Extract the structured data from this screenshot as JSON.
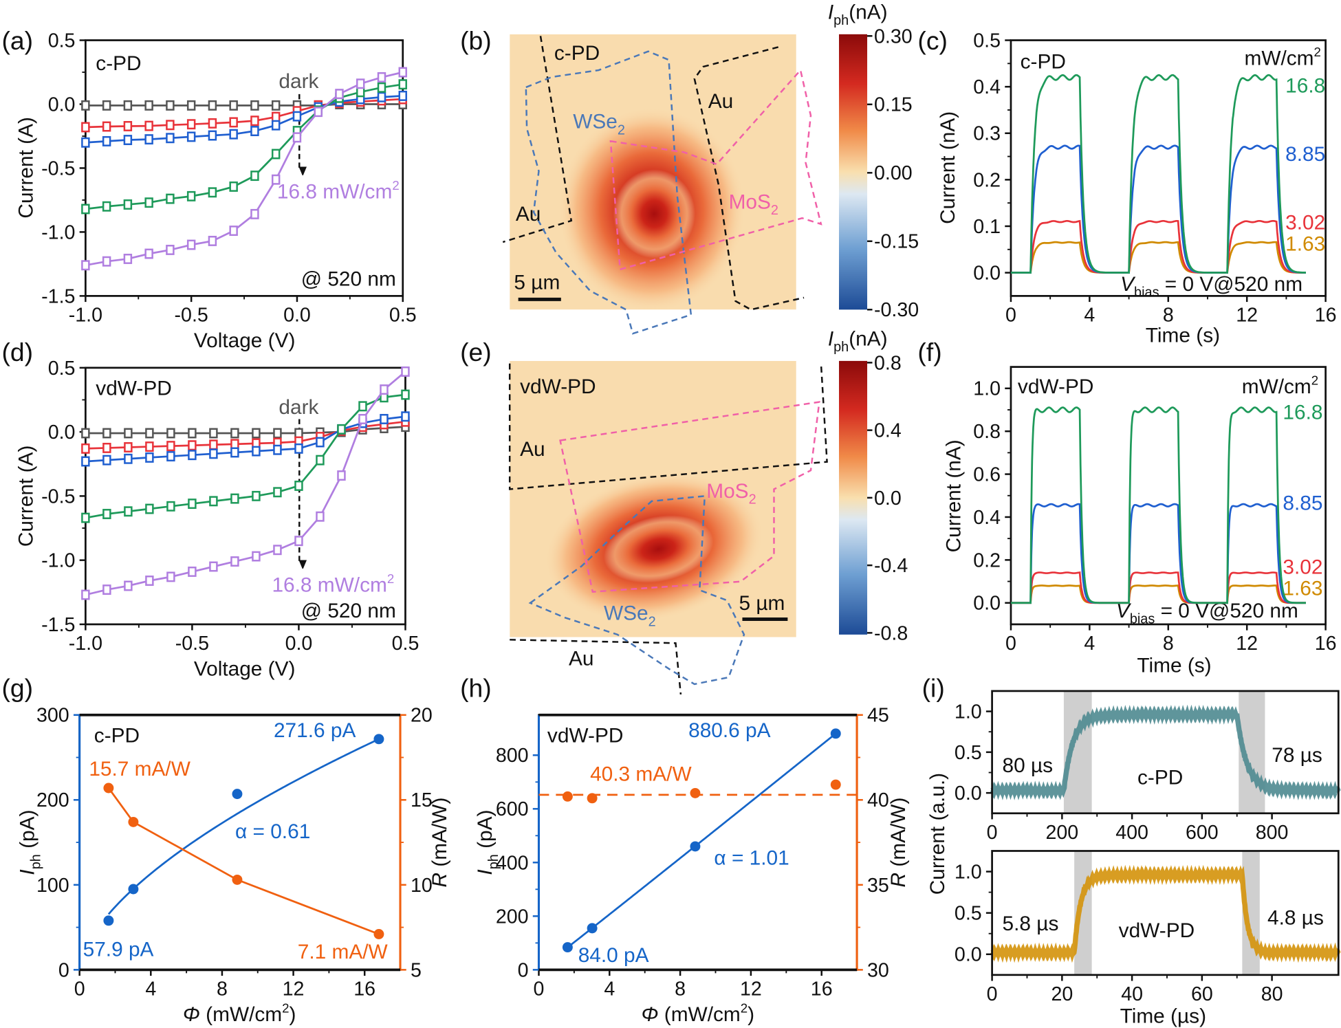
{
  "panel_labels": {
    "a": "(a)",
    "b": "(b)",
    "c": "(c)",
    "d": "(d)",
    "e": "(e)",
    "f": "(f)",
    "g": "(g)",
    "h": "(h)",
    "i": "(i)"
  },
  "chart_data": [
    {
      "panel": "a",
      "type": "line",
      "device": "c-PD",
      "xlabel": "Voltage (V)",
      "ylabel": "Current (A)",
      "xlim": [
        -1.0,
        0.5
      ],
      "ylim": [
        -1.5,
        0.5
      ],
      "xticks": [
        "-1.0",
        "-0.5",
        "0.0",
        "0.5"
      ],
      "yticks": [
        "-1.5",
        "-1.0",
        "-0.5",
        "0.0",
        "0.5"
      ],
      "x": [
        -1.0,
        -0.9,
        -0.8,
        -0.7,
        -0.6,
        -0.5,
        -0.4,
        -0.3,
        -0.2,
        -0.1,
        0.0,
        0.1,
        0.2,
        0.3,
        0.4,
        0.5
      ],
      "series": [
        {
          "color": "#555555",
          "values": [
            -0.01,
            -0.01,
            -0.01,
            -0.01,
            -0.01,
            -0.01,
            -0.01,
            -0.01,
            -0.01,
            -0.01,
            -0.01,
            -0.01,
            0.0,
            0.0,
            0.0,
            0.0
          ]
        },
        {
          "color": "#e8333a",
          "values": [
            -0.18,
            -0.175,
            -0.172,
            -0.17,
            -0.163,
            -0.157,
            -0.15,
            -0.142,
            -0.13,
            -0.1,
            -0.055,
            -0.01,
            0.01,
            0.02,
            0.03,
            0.04
          ]
        },
        {
          "color": "#1f5fd0",
          "values": [
            -0.3,
            -0.29,
            -0.28,
            -0.275,
            -0.265,
            -0.255,
            -0.245,
            -0.235,
            -0.21,
            -0.165,
            -0.095,
            -0.025,
            0.02,
            0.04,
            0.055,
            0.065
          ]
        },
        {
          "color": "#1e9a5a",
          "values": [
            -0.82,
            -0.8,
            -0.785,
            -0.77,
            -0.74,
            -0.72,
            -0.69,
            -0.645,
            -0.56,
            -0.39,
            -0.21,
            -0.05,
            0.05,
            0.095,
            0.13,
            0.155
          ]
        },
        {
          "color": "#b07ee0",
          "values": [
            -1.26,
            -1.23,
            -1.21,
            -1.17,
            -1.14,
            -1.1,
            -1.07,
            -0.99,
            -0.86,
            -0.59,
            -0.26,
            -0.06,
            0.08,
            0.16,
            0.21,
            0.25
          ]
        }
      ],
      "annotations": {
        "dark": "dark",
        "power": "16.8 mW/cm",
        "power_sup": "2",
        "wavelength": "@ 520 nm"
      }
    },
    {
      "panel": "b",
      "type": "heatmap",
      "device": "c-PD",
      "colorbar_label": {
        "symbol": "I",
        "sub": "ph",
        "unit": "(nA)"
      },
      "colorbar_ticks": [
        "0.30",
        "0.15",
        "0.00",
        "-0.15",
        "-0.30"
      ],
      "colormap": [
        "#8b0a0a",
        "#d42a20",
        "#f08a48",
        "#f9dfae",
        "#dde8f2",
        "#6e9fd2",
        "#1d4b96"
      ],
      "region_labels": {
        "wse2": "WSe",
        "wse2_sub": "2",
        "mos2": "MoS",
        "mos2_sub": "2",
        "au_left": "Au",
        "au_right": "Au"
      },
      "scale_bar": "5 µm"
    },
    {
      "panel": "c",
      "type": "line",
      "device": "c-PD",
      "xlabel": "Time (s)",
      "ylabel": "Current (nA)",
      "xlim": [
        0,
        16
      ],
      "ylim": [
        -0.05,
        0.5
      ],
      "xticks": [
        "0",
        "4",
        "8",
        "12",
        "16"
      ],
      "yticks": [
        "0.0",
        "0.1",
        "0.2",
        "0.3",
        "0.4",
        "0.5"
      ],
      "light_on_intervals": [
        [
          1,
          3.5
        ],
        [
          6,
          8.5
        ],
        [
          11,
          13.5
        ]
      ],
      "series": [
        {
          "name": "16.8",
          "color": "#1e9a5a",
          "plateau": 0.42
        },
        {
          "name": "8.85",
          "color": "#1f5fd0",
          "plateau": 0.27
        },
        {
          "name": "3.02",
          "color": "#e8333a",
          "plateau": 0.11
        },
        {
          "name": "1.63",
          "color": "#d08a00",
          "plateau": 0.065
        }
      ],
      "unit_label": "mW/cm",
      "unit_sup": "2",
      "bias_label": {
        "symbol": "V",
        "sub": "bias",
        "rest": " = 0 V@520 nm"
      }
    },
    {
      "panel": "d",
      "type": "line",
      "device": "vdW-PD",
      "xlabel": "Voltage (V)",
      "ylabel": "Current (A)",
      "xlim": [
        -1.0,
        0.5
      ],
      "ylim": [
        -1.5,
        0.5
      ],
      "xticks": [
        "-1.0",
        "-0.5",
        "0.0",
        "0.5"
      ],
      "yticks": [
        "-1.5",
        "-1.0",
        "-0.5",
        "0.0",
        "0.5"
      ],
      "x": [
        -1.0,
        -0.9,
        -0.8,
        -0.7,
        -0.6,
        -0.5,
        -0.4,
        -0.3,
        -0.2,
        -0.1,
        0.0,
        0.1,
        0.2,
        0.3,
        0.4,
        0.5
      ],
      "series": [
        {
          "color": "#555555",
          "values": [
            -0.01,
            -0.01,
            -0.01,
            -0.01,
            -0.01,
            -0.01,
            -0.01,
            -0.01,
            -0.01,
            -0.01,
            -0.01,
            -0.005,
            0.0,
            0.02,
            0.03,
            0.04
          ]
        },
        {
          "color": "#e8333a",
          "values": [
            -0.13,
            -0.125,
            -0.12,
            -0.115,
            -0.11,
            -0.105,
            -0.1,
            -0.095,
            -0.09,
            -0.085,
            -0.075,
            -0.04,
            0.01,
            0.04,
            0.06,
            0.08
          ]
        },
        {
          "color": "#1f5fd0",
          "values": [
            -0.23,
            -0.22,
            -0.21,
            -0.2,
            -0.19,
            -0.18,
            -0.17,
            -0.16,
            -0.15,
            -0.14,
            -0.13,
            -0.08,
            0.02,
            0.07,
            0.1,
            0.12
          ]
        },
        {
          "color": "#1e9a5a",
          "values": [
            -0.67,
            -0.64,
            -0.62,
            -0.6,
            -0.58,
            -0.56,
            -0.54,
            -0.52,
            -0.5,
            -0.47,
            -0.42,
            -0.22,
            0.02,
            0.2,
            0.27,
            0.29
          ]
        },
        {
          "color": "#b07ee0",
          "values": [
            -1.27,
            -1.23,
            -1.2,
            -1.16,
            -1.13,
            -1.09,
            -1.05,
            -1.01,
            -0.97,
            -0.92,
            -0.85,
            -0.66,
            -0.34,
            0.1,
            0.33,
            0.47
          ]
        }
      ],
      "annotations": {
        "dark": "dark",
        "power": "16.8 mW/cm",
        "power_sup": "2",
        "wavelength": "@ 520 nm"
      }
    },
    {
      "panel": "e",
      "type": "heatmap",
      "device": "vdW-PD",
      "colorbar_label": {
        "symbol": "I",
        "sub": "ph",
        "unit": "(nA)"
      },
      "colorbar_ticks": [
        "0.8",
        "0.4",
        "0.0",
        "-0.4",
        "-0.8"
      ],
      "colormap": [
        "#8b0a0a",
        "#d42a20",
        "#f08a48",
        "#f9dfae",
        "#dde8f2",
        "#6e9fd2",
        "#1d4b96"
      ],
      "region_labels": {
        "wse2": "WSe",
        "wse2_sub": "2",
        "mos2": "MoS",
        "mos2_sub": "2",
        "au_top": "Au",
        "au_bottom": "Au"
      },
      "scale_bar": "5 µm"
    },
    {
      "panel": "f",
      "type": "line",
      "device": "vdW-PD",
      "xlabel": "Time (s)",
      "ylabel": "Current (nA)",
      "xlim": [
        0,
        16
      ],
      "ylim": [
        -0.1,
        1.1
      ],
      "xticks": [
        "0",
        "4",
        "8",
        "12",
        "16"
      ],
      "yticks": [
        "0.0",
        "0.2",
        "0.4",
        "0.6",
        "0.8",
        "1.0"
      ],
      "light_on_intervals": [
        [
          1,
          3.5
        ],
        [
          6,
          8.5
        ],
        [
          11,
          13.5
        ]
      ],
      "series": [
        {
          "name": "16.8",
          "color": "#1e9a5a",
          "plateau": 0.9
        },
        {
          "name": "8.85",
          "color": "#1f5fd0",
          "plateau": 0.455
        },
        {
          "name": "3.02",
          "color": "#e8333a",
          "plateau": 0.14
        },
        {
          "name": "1.63",
          "color": "#d08a00",
          "plateau": 0.08
        }
      ],
      "unit_label": "mW/cm",
      "unit_sup": "2",
      "bias_label": {
        "symbol": "V",
        "sub": "bias",
        "rest": " = 0 V@520 nm"
      }
    },
    {
      "panel": "g",
      "type": "scatter",
      "device": "c-PD",
      "xlabel": {
        "symbol": "Φ",
        "unit": " (mW/cm",
        "sup": "2",
        "close": ")"
      },
      "ylabel_left": {
        "symbol": "I",
        "sub": "ph",
        "unit": " (pA)"
      },
      "ylabel_right": {
        "symbol": "R",
        "unit": " (mA/W)"
      },
      "xlim": [
        0,
        18
      ],
      "ylim_left": [
        0,
        300
      ],
      "ylim_right": [
        5,
        20
      ],
      "xticks": [
        "0",
        "4",
        "8",
        "12",
        "16"
      ],
      "yticks_left": [
        "0",
        "100",
        "200",
        "300"
      ],
      "yticks_right": [
        "5",
        "10",
        "15",
        "20"
      ],
      "x": [
        1.63,
        3.02,
        8.85,
        16.8
      ],
      "photocurrent_pA": [
        57.9,
        95,
        207,
        271.6
      ],
      "responsivity_mAW": [
        15.7,
        13.7,
        10.3,
        7.1
      ],
      "fit_exponent": 0.61,
      "colors": {
        "photocurrent": "#1565c8",
        "responsivity": "#f06010"
      },
      "annotations": {
        "alpha": "α = 0.61",
        "iph_max": "271.6 pA",
        "iph_min": "57.9 pA",
        "r_max": "15.7 mA/W",
        "r_min": "7.1 mA/W"
      }
    },
    {
      "panel": "h",
      "type": "scatter",
      "device": "vdW-PD",
      "xlabel": {
        "symbol": "Φ",
        "unit": " (mW/cm",
        "sup": "2",
        "close": ")"
      },
      "ylabel_left": {
        "symbol": "I",
        "sub": "ph",
        "unit": " (pA)"
      },
      "ylabel_right": {
        "symbol": "R",
        "unit": " (mA/W)"
      },
      "xlim": [
        0,
        18
      ],
      "ylim_left": [
        0,
        950
      ],
      "ylim_right": [
        30,
        45
      ],
      "xticks": [
        "0",
        "4",
        "8",
        "12",
        "16"
      ],
      "yticks_left": [
        "0",
        "200",
        "400",
        "600",
        "800"
      ],
      "yticks_right": [
        "30",
        "35",
        "40",
        "45"
      ],
      "x": [
        1.63,
        3.02,
        8.85,
        16.8
      ],
      "photocurrent_pA": [
        84.0,
        155,
        460,
        880.6
      ],
      "responsivity_mAW": [
        40.2,
        40.1,
        40.4,
        40.9
      ],
      "responsivity_mean_mAW": 40.3,
      "fit_exponent": 1.01,
      "colors": {
        "photocurrent": "#1565c8",
        "responsivity": "#f06010"
      },
      "annotations": {
        "alpha": "α = 1.01",
        "iph_max": "880.6 pA",
        "iph_min": "84.0 pA",
        "r_mean": "40.3 mA/W"
      }
    },
    {
      "panel": "i",
      "type": "line",
      "ylabel": "Current (a.u.)",
      "xlabel": "Time (µs)",
      "subplots": [
        {
          "device": "c-PD",
          "xlim": [
            0,
            990
          ],
          "ylim": [
            -0.25,
            1.25
          ],
          "xticks": [
            "0",
            "200",
            "400",
            "600",
            "800"
          ],
          "yticks": [
            "0.0",
            "0.5",
            "1.0"
          ],
          "light_edges": [
            205,
            700
          ],
          "shaded_intervals": [
            [
              205,
              285
            ],
            [
              705,
              780
            ]
          ],
          "baseline": 0.03,
          "plateau": 0.96,
          "rise_time": "80 µs",
          "fall_time": "78 µs",
          "color": "#4e8a90"
        },
        {
          "device": "vdW-PD",
          "xlim": [
            0,
            99
          ],
          "ylim": [
            -0.25,
            1.25
          ],
          "xticks": [
            "0",
            "20",
            "40",
            "60",
            "80"
          ],
          "yticks": [
            "0.0",
            "0.5",
            "1.0"
          ],
          "light_edges": [
            23.5,
            71.5
          ],
          "shaded_intervals": [
            [
              23.5,
              28.5
            ],
            [
              71.5,
              76.5
            ]
          ],
          "baseline": 0.02,
          "plateau": 0.96,
          "rise_time": "5.8 µs",
          "fall_time": "4.8 µs",
          "color": "#d4920a"
        }
      ]
    }
  ]
}
